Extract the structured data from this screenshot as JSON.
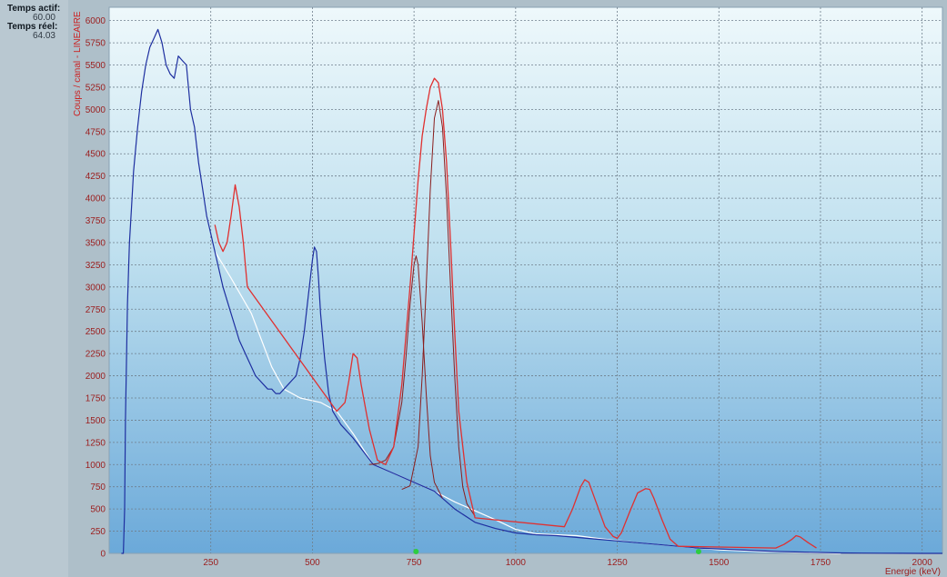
{
  "sidebar": {
    "live_time_label": "Temps actif:",
    "live_time_value": "60.00",
    "real_time_label": "Temps réel:",
    "real_time_value": "64.03"
  },
  "chart_data": {
    "type": "line",
    "xlabel": "Energie (keV)",
    "ylabel": "Coups / canal - LINEAIRE",
    "xlim": [
      0,
      2050
    ],
    "ylim": [
      0,
      6150
    ],
    "x_ticks": [
      250,
      500,
      750,
      1000,
      1250,
      1500,
      1750,
      2000
    ],
    "y_ticks": [
      0,
      250,
      500,
      750,
      1000,
      1250,
      1500,
      1750,
      2000,
      2250,
      2500,
      2750,
      3000,
      3250,
      3500,
      3750,
      4000,
      4250,
      4500,
      4750,
      5000,
      5250,
      5500,
      5750,
      6000
    ],
    "grid": true,
    "colors": {
      "spectrum": "#1e2fa0",
      "peak_fit": "#e03030",
      "components": "#8a1e1e",
      "baseline": "#ffffff",
      "markers": "#2ecc40",
      "tick_text": "#9b1d1d",
      "bg_top": "#eef8fb",
      "bg_bottom": "#6ba9d9"
    },
    "series": [
      {
        "role": "spectrum",
        "x": [
          30,
          35,
          38,
          40,
          45,
          50,
          55,
          60,
          70,
          80,
          90,
          100,
          110,
          120,
          130,
          140,
          150,
          160,
          170,
          180,
          190,
          200,
          210,
          220,
          230,
          240,
          250,
          265,
          280,
          300,
          320,
          340,
          350,
          360,
          370,
          380,
          390,
          400,
          410,
          420,
          430,
          440,
          450,
          460,
          470,
          480,
          490,
          500,
          505,
          510,
          515,
          520,
          530,
          540,
          550,
          570,
          600,
          650,
          700,
          750,
          800,
          850,
          900,
          950,
          1000,
          1050,
          1100,
          1150,
          1200,
          1250,
          1300,
          1350,
          1400,
          1450,
          1500,
          1550,
          1600,
          1650,
          1700,
          1750,
          1800,
          1850,
          1900,
          1950,
          2000,
          2050
        ],
        "y": [
          0,
          0,
          500,
          1500,
          2800,
          3500,
          3900,
          4300,
          4800,
          5200,
          5500,
          5700,
          5800,
          5900,
          5750,
          5500,
          5400,
          5350,
          5600,
          5550,
          5500,
          5000,
          4800,
          4400,
          4100,
          3800,
          3600,
          3300,
          3000,
          2700,
          2400,
          2200,
          2100,
          2000,
          1950,
          1900,
          1850,
          1850,
          1800,
          1800,
          1850,
          1900,
          1950,
          2000,
          2200,
          2500,
          2900,
          3300,
          3450,
          3400,
          3100,
          2700,
          2200,
          1800,
          1600,
          1450,
          1300,
          1000,
          900,
          800,
          700,
          500,
          350,
          280,
          230,
          210,
          200,
          180,
          160,
          140,
          120,
          100,
          80,
          60,
          50,
          40,
          30,
          20,
          15,
          10,
          5,
          3,
          2,
          1,
          0,
          0
        ]
      },
      {
        "role": "peak-fit",
        "x": [
          260,
          270,
          280,
          290,
          300,
          310,
          320,
          330,
          340,
          560,
          580,
          590,
          600,
          610,
          620,
          640,
          660,
          680,
          700,
          720,
          740,
          760,
          770,
          780,
          790,
          800,
          810,
          820,
          830,
          840,
          850,
          860,
          880,
          900,
          1120,
          1140,
          1160,
          1170,
          1180,
          1200,
          1220,
          1240,
          1250,
          1260,
          1280,
          1300,
          1320,
          1330,
          1340,
          1360,
          1380,
          1400,
          1640,
          1660,
          1680,
          1690,
          1700,
          1720,
          1740
        ],
        "y": [
          3700,
          3500,
          3400,
          3500,
          3800,
          4150,
          3900,
          3500,
          3000,
          1600,
          1700,
          1950,
          2250,
          2200,
          1900,
          1400,
          1050,
          1000,
          1200,
          1900,
          3000,
          4200,
          4700,
          5000,
          5250,
          5350,
          5300,
          5000,
          4400,
          3500,
          2500,
          1600,
          800,
          400,
          300,
          500,
          750,
          830,
          800,
          550,
          300,
          190,
          170,
          230,
          460,
          680,
          730,
          720,
          620,
          380,
          160,
          80,
          60,
          100,
          160,
          200,
          185,
          120,
          60
        ]
      },
      {
        "role": "component-1",
        "x": [
          640,
          660,
          680,
          700,
          720,
          730,
          740,
          750,
          755,
          760,
          770,
          780,
          790,
          800,
          820
        ],
        "y": [
          1000,
          1010,
          1050,
          1200,
          1700,
          2200,
          2800,
          3250,
          3350,
          3250,
          2600,
          1800,
          1100,
          800,
          620
        ]
      },
      {
        "role": "component-2",
        "x": [
          720,
          740,
          760,
          770,
          780,
          790,
          800,
          810,
          820,
          830,
          840,
          850,
          860,
          870,
          880,
          900
        ],
        "y": [
          720,
          760,
          1200,
          2000,
          3000,
          4100,
          4900,
          5100,
          4800,
          4000,
          3000,
          2000,
          1200,
          750,
          560,
          420
        ]
      },
      {
        "role": "baseline",
        "x": [
          260,
          300,
          350,
          400,
          430,
          470,
          520,
          560,
          600,
          650,
          700,
          750,
          800,
          850,
          900,
          950,
          1000,
          1050,
          1100,
          1150,
          1200,
          1300,
          1400,
          1500,
          1600,
          1700,
          1800
        ],
        "y": [
          3400,
          3100,
          2700,
          2100,
          1850,
          1750,
          1700,
          1600,
          1350,
          1000,
          900,
          800,
          700,
          580,
          480,
          380,
          270,
          220,
          210,
          200,
          170,
          120,
          80,
          40,
          20,
          10,
          0
        ]
      }
    ],
    "markers_x": [
      755,
      1450
    ]
  }
}
